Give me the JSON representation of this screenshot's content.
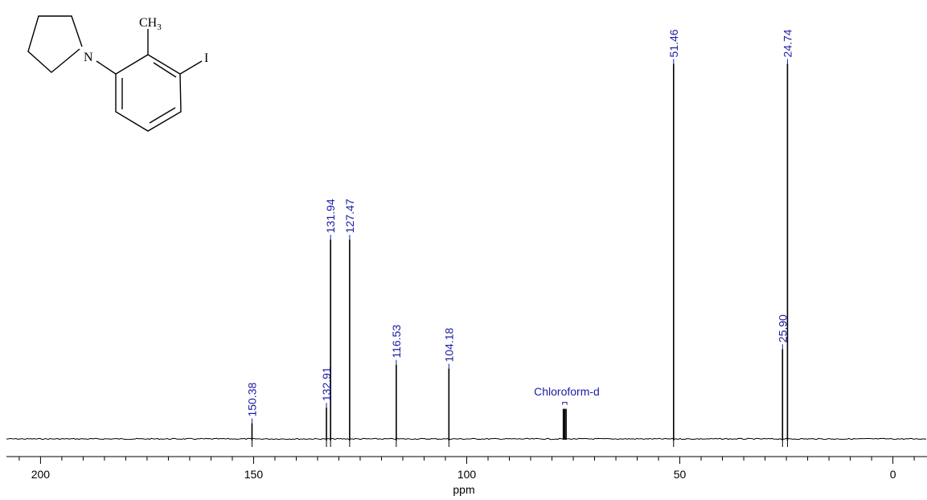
{
  "chart_data": {
    "type": "line",
    "title": "",
    "xlabel": "ppm",
    "ylabel": "",
    "x_reversed": true,
    "xlim": [
      208,
      -8
    ],
    "x_ticks": [
      200,
      150,
      100,
      50,
      0
    ],
    "x_tick_labels": [
      "200",
      "150",
      "100",
      "50",
      "0"
    ],
    "minor_tick_step": 5,
    "ylim": [
      0,
      1
    ],
    "peaks": [
      {
        "ppm": 150.38,
        "intensity": 0.04,
        "label": "150.38"
      },
      {
        "ppm": 132.91,
        "intensity": 0.08,
        "label": "132.91"
      },
      {
        "ppm": 131.94,
        "intensity": 0.51,
        "label": "131.94"
      },
      {
        "ppm": 127.47,
        "intensity": 0.51,
        "label": "127.47"
      },
      {
        "ppm": 116.53,
        "intensity": 0.19,
        "label": "116.53"
      },
      {
        "ppm": 104.18,
        "intensity": 0.18,
        "label": "104.18"
      },
      {
        "ppm": 51.46,
        "intensity": 0.96,
        "label": "51.46"
      },
      {
        "ppm": 25.9,
        "intensity": 0.23,
        "label": "25.90"
      },
      {
        "ppm": 24.74,
        "intensity": 0.96,
        "label": "24.74"
      }
    ],
    "solvent": {
      "label": "Chloroform-d",
      "ppm": [
        77.32,
        77.0,
        76.68
      ],
      "intensity": 0.077
    },
    "grid": false,
    "legend": "none"
  },
  "molecule": {
    "atoms": {
      "nitrogen": "N",
      "methyl": "CH",
      "methyl_sub": "3",
      "iodine": "I"
    }
  },
  "colors": {
    "peak_labels": "#1a1aa6",
    "spectrum": "#000000"
  }
}
